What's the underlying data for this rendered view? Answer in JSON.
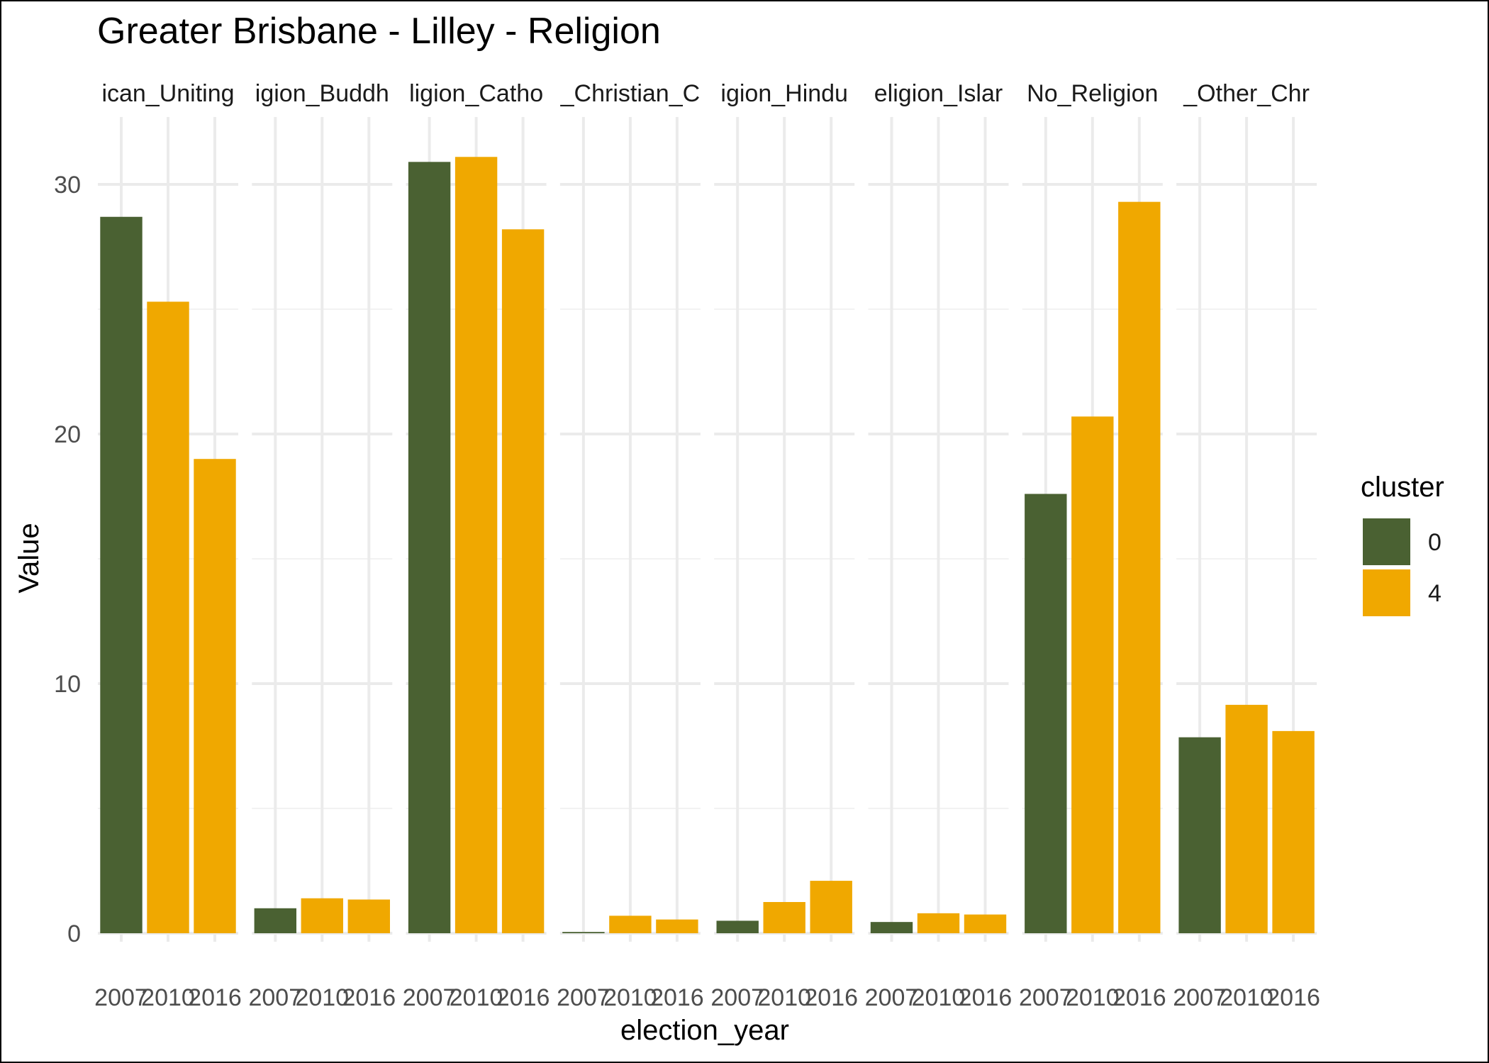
{
  "chart_data": {
    "type": "bar",
    "title": "Greater Brisbane - Lilley - Religion",
    "xlabel": "election_year",
    "ylabel": "Value",
    "ylim": [
      0,
      32.5
    ],
    "y_ticks": [
      0,
      10,
      20,
      30
    ],
    "years": [
      "2007",
      "2010",
      "2016"
    ],
    "grid": true,
    "legend": {
      "title": "cluster",
      "position": "right",
      "entries": [
        {
          "label": "0",
          "color": "#4a6132"
        },
        {
          "label": "4",
          "color": "#f0a800"
        }
      ]
    },
    "panels": [
      {
        "strip": "ican_Uniting",
        "values": [
          28.7,
          25.3,
          19.0
        ],
        "clusters": [
          "0",
          "4",
          "4"
        ]
      },
      {
        "strip": "igion_Buddh",
        "values": [
          1.0,
          1.4,
          1.35
        ],
        "clusters": [
          "0",
          "4",
          "4"
        ]
      },
      {
        "strip": "ligion_Catho",
        "values": [
          30.9,
          31.1,
          28.2
        ],
        "clusters": [
          "0",
          "4",
          "4"
        ]
      },
      {
        "strip": "_Christian_C",
        "values": [
          0.05,
          0.7,
          0.55
        ],
        "clusters": [
          "0",
          "4",
          "4"
        ]
      },
      {
        "strip": "igion_Hindu",
        "values": [
          0.5,
          1.25,
          2.1
        ],
        "clusters": [
          "0",
          "4",
          "4"
        ]
      },
      {
        "strip": "eligion_Islar",
        "values": [
          0.45,
          0.8,
          0.75
        ],
        "clusters": [
          "0",
          "4",
          "4"
        ]
      },
      {
        "strip": "No_Religion",
        "values": [
          17.6,
          20.7,
          29.3
        ],
        "clusters": [
          "0",
          "4",
          "4"
        ]
      },
      {
        "strip": "_Other_Chr",
        "values": [
          7.85,
          9.15,
          8.1
        ],
        "clusters": [
          "0",
          "4",
          "4"
        ]
      }
    ]
  }
}
